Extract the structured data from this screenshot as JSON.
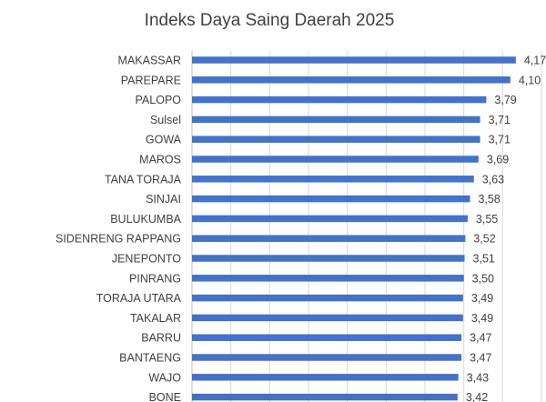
{
  "chart_data": {
    "type": "bar",
    "orientation": "horizontal",
    "title": "Indeks Daya Saing Daerah 2025",
    "xlabel": "",
    "ylabel": "",
    "grid": true,
    "legend": "none",
    "xlim": [
      0,
      4.5
    ],
    "bar_color": "#4472c4",
    "categories": [
      "MAKASSAR",
      "PAREPARE",
      "PALOPO",
      "Sulsel",
      "GOWA",
      "MAROS",
      "TANA TORAJA",
      "SINJAI",
      "BULUKUMBA",
      "SIDENRENG RAPPANG",
      "JENEPONTO",
      "PINRANG",
      "TORAJA UTARA",
      "TAKALAR",
      "BARRU",
      "BANTAENG",
      "WAJO",
      "BONE"
    ],
    "values": [
      4.17,
      4.1,
      3.79,
      3.71,
      3.71,
      3.69,
      3.63,
      3.58,
      3.55,
      3.52,
      3.51,
      3.5,
      3.49,
      3.49,
      3.47,
      3.47,
      3.43,
      3.42
    ],
    "value_labels": [
      "4,17",
      "4,10",
      "3,79",
      "3,71",
      "3,71",
      "3,69",
      "3,63",
      "3,58",
      "3,55",
      "3,52",
      "3,51",
      "3,50",
      "3,49",
      "3,49",
      "3,47",
      "3,47",
      "3,43",
      "3,42"
    ]
  }
}
